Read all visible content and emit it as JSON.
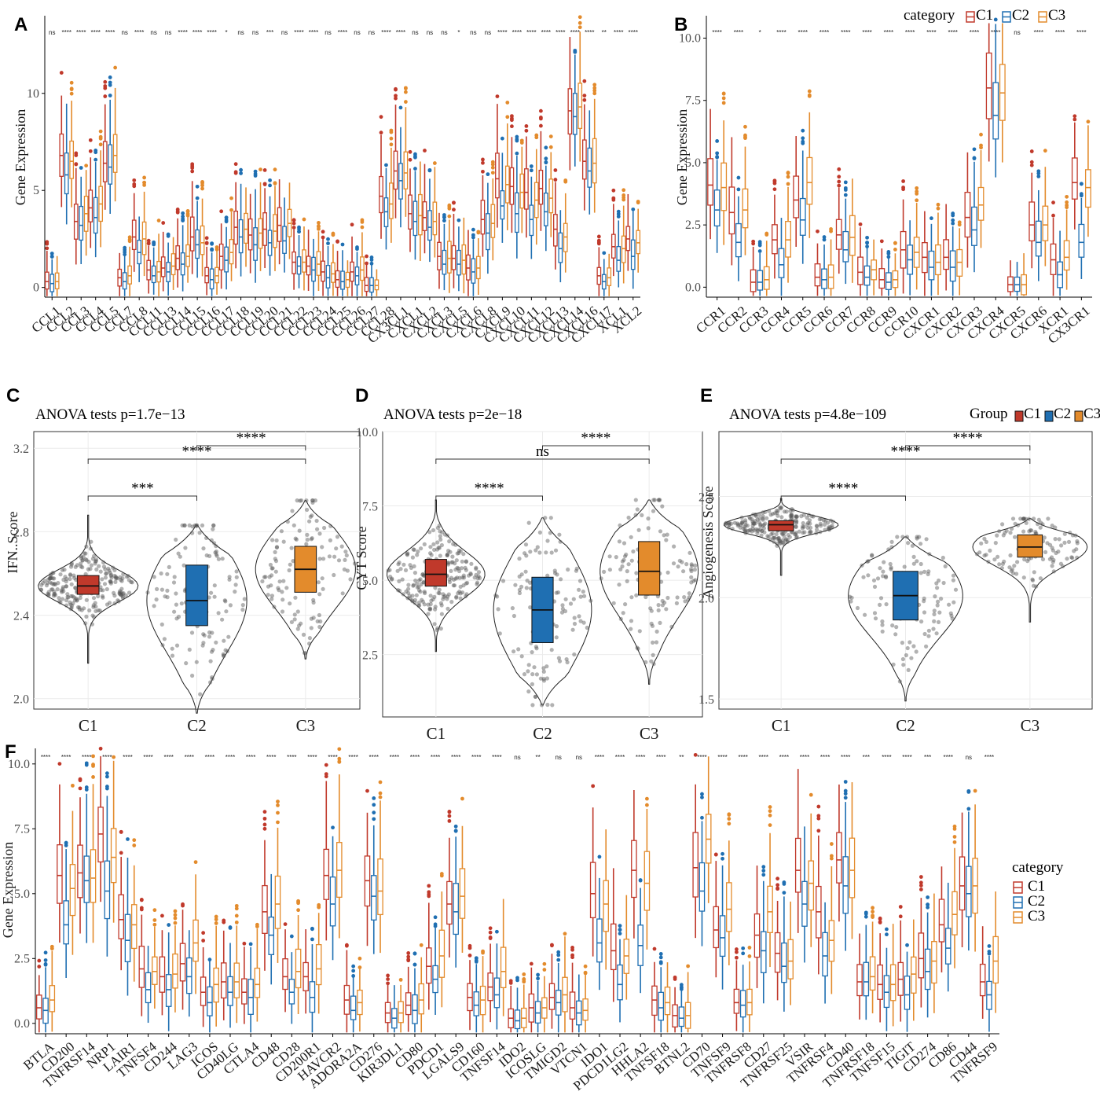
{
  "figure": {
    "panel_labels": [
      "A",
      "B",
      "C",
      "D",
      "E",
      "F"
    ],
    "colors": {
      "C1": "#c0392b",
      "C2": "#1f6fb2",
      "C3": "#e38b2c",
      "grid": "#ebebeb",
      "frame": "#333333"
    }
  },
  "chart_data": [
    {
      "panel": "A",
      "type": "box",
      "ylabel": "Gene Expression",
      "ylim": [
        -0.5,
        14
      ],
      "yticks": [
        0,
        5,
        10
      ],
      "legend": null,
      "series_names": [
        "C1",
        "C2",
        "C3"
      ],
      "categories": [
        "CCL1",
        "CCL2",
        "CCL3",
        "CCL4",
        "CCL5",
        "CCL7",
        "CCL8",
        "CCL11",
        "CCL13",
        "CCL14",
        "CCL15",
        "CCL16",
        "CCL17",
        "CCL18",
        "CCL19",
        "CCL20",
        "CCL21",
        "CCL22",
        "CCL23",
        "CCL24",
        "CCL25",
        "CCL26",
        "CCL27",
        "CCL28",
        "CX3CL1",
        "CXCL1",
        "CXCL2",
        "CXCL3",
        "CXCL5",
        "CXCL6",
        "CXCL8",
        "CXCL9",
        "CXCL10",
        "CXCL11",
        "CXCL12",
        "CXCL13",
        "CXCL14",
        "CXCL16",
        "CXCL17",
        "XCL1",
        "XCL2"
      ],
      "significance": [
        "ns",
        "****",
        "****",
        "****",
        "****",
        "ns",
        "****",
        "ns",
        "ns",
        "****",
        "****",
        "****",
        "*",
        "ns",
        "ns",
        "***",
        "ns",
        "****",
        "****",
        "ns",
        "****",
        "ns",
        "ns",
        "****",
        "****",
        "ns",
        "ns",
        "ns",
        "*",
        "ns",
        "ns",
        "****",
        "****",
        "****",
        "****",
        "****",
        "****",
        "****",
        "**",
        "****",
        "****"
      ],
      "medians": [
        [
          0.3,
          0.2,
          0.3
        ],
        [
          6.8,
          5.8,
          6.5
        ],
        [
          3.4,
          3.2,
          3.8
        ],
        [
          4.1,
          3.6,
          4.3
        ],
        [
          6.4,
          6.2,
          6.8
        ],
        [
          0.5,
          0.3,
          0.6
        ],
        [
          2.6,
          1.8,
          2.5
        ],
        [
          0.9,
          0.6,
          0.8
        ],
        [
          1.0,
          0.8,
          1.1
        ],
        [
          1.5,
          1.2,
          1.6
        ],
        [
          2.6,
          2.2,
          2.3
        ],
        [
          0.6,
          0.4,
          0.6
        ],
        [
          1.6,
          1.4,
          1.8
        ],
        [
          3.1,
          2.6,
          3.0
        ],
        [
          2.7,
          2.2,
          2.8
        ],
        [
          3.0,
          2.3,
          2.9
        ],
        [
          3.2,
          2.4,
          3.3
        ],
        [
          1.3,
          1.1,
          1.3
        ],
        [
          1.1,
          0.9,
          1.2
        ],
        [
          0.8,
          0.5,
          0.7
        ],
        [
          0.4,
          0.3,
          0.4
        ],
        [
          0.8,
          0.6,
          0.9
        ],
        [
          0.1,
          0.1,
          0.1
        ],
        [
          4.7,
          3.9,
          4.3
        ],
        [
          6.0,
          5.5,
          5.9
        ],
        [
          3.8,
          3.4,
          3.7
        ],
        [
          3.6,
          3.1,
          3.4
        ],
        [
          1.6,
          1.2,
          1.5
        ],
        [
          1.5,
          1.2,
          1.4
        ],
        [
          1.0,
          0.8,
          1.0
        ],
        [
          3.5,
          2.8,
          3.3
        ],
        [
          5.6,
          4.2,
          5.3
        ],
        [
          5.2,
          3.8,
          4.9
        ],
        [
          4.9,
          3.5,
          4.5
        ],
        [
          5.1,
          3.9,
          4.6
        ],
        [
          3.0,
          2.0,
          2.6
        ],
        [
          9.1,
          8.8,
          9.3
        ],
        [
          6.5,
          6.0,
          6.4
        ],
        [
          0.6,
          0.3,
          0.5
        ],
        [
          2.1,
          1.4,
          2.0
        ],
        [
          2.5,
          1.6,
          2.3
        ]
      ]
    },
    {
      "panel": "B",
      "type": "box",
      "ylabel": "Gene Expression",
      "ylim": [
        -0.4,
        10.9
      ],
      "yticks": [
        0.0,
        2.5,
        5.0,
        7.5,
        10.0
      ],
      "legend": {
        "title": "category",
        "entries": [
          "C1",
          "C2",
          "C3"
        ],
        "position": "top-right"
      },
      "series_names": [
        "C1",
        "C2",
        "C3"
      ],
      "categories": [
        "CCR1",
        "CCR2",
        "CCR3",
        "CCR4",
        "CCR5",
        "CCR6",
        "CCR7",
        "CCR8",
        "CCR9",
        "CCR10",
        "CXCR1",
        "CXCR2",
        "CXCR3",
        "CXCR4",
        "CXCR5",
        "CXCR6",
        "XCR1",
        "CX3CR1"
      ],
      "significance": [
        "****",
        "****",
        "*",
        "****",
        "****",
        "****",
        "****",
        "****",
        "****",
        "****",
        "****",
        "****",
        "****",
        "****",
        "ns",
        "****",
        "****",
        "****"
      ],
      "medians": [
        [
          4.1,
          3.1,
          4.0
        ],
        [
          3.0,
          1.8,
          3.1
        ],
        [
          0.2,
          0.2,
          0.3
        ],
        [
          1.9,
          0.9,
          1.9
        ],
        [
          3.5,
          2.7,
          4.2
        ],
        [
          0.4,
          0.3,
          0.4
        ],
        [
          2.1,
          1.5,
          2.0
        ],
        [
          0.6,
          0.4,
          0.7
        ],
        [
          0.3,
          0.2,
          0.3
        ],
        [
          1.5,
          1.1,
          1.4
        ],
        [
          1.2,
          0.8,
          1.0
        ],
        [
          1.2,
          0.8,
          1.0
        ],
        [
          2.8,
          2.3,
          3.3
        ],
        [
          8.0,
          6.9,
          7.8
        ],
        [
          0.1,
          0.1,
          0.1
        ],
        [
          2.5,
          1.8,
          2.5
        ],
        [
          1.1,
          0.5,
          1.2
        ],
        [
          4.2,
          1.8,
          4.0
        ]
      ]
    },
    {
      "panel": "C",
      "type": "violin-box",
      "title": "ANOVA tests p=1.7e−13",
      "ylabel": "IFN..Score",
      "ylim": [
        1.95,
        3.28
      ],
      "yticks": [
        2.0,
        2.4,
        2.8,
        3.2
      ],
      "categories": [
        "C1",
        "C2",
        "C3"
      ],
      "boxes": [
        {
          "q1": 2.5,
          "median": 2.54,
          "q3": 2.59,
          "min": 2.17,
          "max": 2.88
        },
        {
          "q1": 2.35,
          "median": 2.47,
          "q3": 2.64,
          "min": 1.93,
          "max": 2.83
        },
        {
          "q1": 2.51,
          "median": 2.62,
          "q3": 2.73,
          "min": 2.19,
          "max": 2.95
        }
      ],
      "comparisons": [
        {
          "pair": [
            "C1",
            "C2"
          ],
          "label": "***"
        },
        {
          "pair": [
            "C1",
            "C3"
          ],
          "label": "****"
        },
        {
          "pair": [
            "C2",
            "C3"
          ],
          "label": "****"
        }
      ],
      "legend": null
    },
    {
      "panel": "D",
      "type": "violin-box",
      "title": "ANOVA tests p=2e−18",
      "ylabel": "CYT Score",
      "ylim": [
        0.4,
        10.0
      ],
      "yticks": [
        2.5,
        5.0,
        7.5,
        10.0
      ],
      "categories": [
        "C1",
        "C2",
        "C3"
      ],
      "boxes": [
        {
          "q1": 4.8,
          "median": 5.2,
          "q3": 5.7,
          "min": 2.6,
          "max": 7.7
        },
        {
          "q1": 2.9,
          "median": 4.0,
          "q3": 5.1,
          "min": 0.8,
          "max": 7.1
        },
        {
          "q1": 4.5,
          "median": 5.3,
          "q3": 6.3,
          "min": 1.5,
          "max": 7.7
        }
      ],
      "comparisons": [
        {
          "pair": [
            "C1",
            "C2"
          ],
          "label": "****"
        },
        {
          "pair": [
            "C1",
            "C3"
          ],
          "label": "ns"
        },
        {
          "pair": [
            "C2",
            "C3"
          ],
          "label": "****"
        }
      ],
      "legend": null
    },
    {
      "panel": "E",
      "type": "violin-box",
      "title": "ANOVA tests p=4.8e−109",
      "ylabel": "Angiogenesis Score",
      "ylim": [
        1.45,
        2.82
      ],
      "yticks": [
        1.5,
        2.0,
        2.5
      ],
      "categories": [
        "C1",
        "C2",
        "C3"
      ],
      "boxes": [
        {
          "q1": 2.33,
          "median": 2.36,
          "q3": 2.38,
          "min": 2.11,
          "max": 2.49
        },
        {
          "q1": 1.89,
          "median": 2.01,
          "q3": 2.13,
          "min": 1.49,
          "max": 2.3
        },
        {
          "q1": 2.2,
          "median": 2.25,
          "q3": 2.31,
          "min": 1.88,
          "max": 2.39
        }
      ],
      "comparisons": [
        {
          "pair": [
            "C1",
            "C2"
          ],
          "label": "****"
        },
        {
          "pair": [
            "C1",
            "C3"
          ],
          "label": "****"
        },
        {
          "pair": [
            "C2",
            "C3"
          ],
          "label": "****"
        }
      ],
      "legend": {
        "title": "Group",
        "entries": [
          "C1",
          "C2",
          "C3"
        ],
        "position": "top-right"
      }
    },
    {
      "panel": "F",
      "type": "box",
      "ylabel": "Gene Expression",
      "ylim": [
        -0.4,
        10.6
      ],
      "yticks": [
        0.0,
        2.5,
        5.0,
        7.5,
        10.0
      ],
      "legend": {
        "title": "category",
        "entries": [
          "C1",
          "C2",
          "C3"
        ],
        "position": "right"
      },
      "series_names": [
        "C1",
        "C2",
        "C3"
      ],
      "categories": [
        "BTLA",
        "CD200",
        "TNFRSF14",
        "NRP1",
        "LAIR1",
        "TNFSF4",
        "CD244",
        "LAG3",
        "ICOS",
        "CD40LG",
        "CTLA4",
        "CD48",
        "CD28",
        "CD200R1",
        "HAVCR2",
        "ADORA2A",
        "CD276",
        "KIR3DL1",
        "CD80",
        "PDCD1",
        "LGALS9",
        "CD160",
        "TNFSF14",
        "IDO2",
        "ICOSLG",
        "TMIGD2",
        "VTCN1",
        "IDO1",
        "PDCD1LG2",
        "HHLA2",
        "TNFSF18",
        "BTNL2",
        "CD70",
        "TNFSF9",
        "TNFRSF8",
        "CD27",
        "TNFRSF25",
        "VSIR",
        "TNFRSF4",
        "CD40",
        "TNFRSF18",
        "TNFSF15",
        "TIGIT",
        "CD274",
        "CD86",
        "CD44",
        "TNFRSF9"
      ],
      "significance": [
        "****",
        "****",
        "****",
        "****",
        "****",
        "****",
        "****",
        "****",
        "****",
        "****",
        "****",
        "****",
        "****",
        "****",
        "****",
        "****",
        "****",
        "****",
        "****",
        "****",
        "****",
        "****",
        "****",
        "ns",
        "**",
        "ns",
        "ns",
        "****",
        "****",
        "****",
        "****",
        "**",
        "****",
        "****",
        "****",
        "****",
        "****",
        "****",
        "****",
        "****",
        "***",
        "****",
        "****",
        "***",
        "****",
        "ns",
        "****"
      ],
      "medians": [
        [
          0.6,
          0.5,
          0.9
        ],
        [
          5.7,
          3.8,
          5.2
        ],
        [
          5.8,
          5.5,
          5.6
        ],
        [
          7.3,
          5.1,
          6.4
        ],
        [
          4.0,
          3.2,
          3.8
        ],
        [
          2.1,
          1.3,
          2.0
        ],
        [
          1.8,
          1.3,
          1.9
        ],
        [
          2.3,
          1.8,
          3.1
        ],
        [
          1.2,
          0.8,
          1.5
        ],
        [
          1.6,
          1.2,
          1.6
        ],
        [
          1.2,
          1.0,
          1.5
        ],
        [
          4.3,
          3.4,
          4.6
        ],
        [
          1.8,
          1.2,
          2.0
        ],
        [
          1.8,
          1.0,
          2.1
        ],
        [
          5.7,
          4.6,
          5.9
        ],
        [
          0.9,
          0.5,
          0.8
        ],
        [
          5.5,
          4.9,
          5.1
        ],
        [
          0.4,
          0.2,
          0.4
        ],
        [
          0.7,
          0.5,
          0.9
        ],
        [
          2.2,
          1.7,
          2.6
        ],
        [
          4.6,
          4.3,
          4.9
        ],
        [
          1.0,
          0.7,
          0.9
        ],
        [
          1.4,
          1.1,
          2.0
        ],
        [
          0.2,
          0.1,
          0.2
        ],
        [
          0.6,
          0.4,
          0.6
        ],
        [
          1.0,
          0.8,
          1.1
        ],
        [
          0.6,
          0.4,
          0.5
        ],
        [
          5.0,
          3.1,
          4.6
        ],
        [
          2.8,
          1.5,
          2.6
        ],
        [
          5.9,
          3.0,
          5.4
        ],
        [
          0.9,
          0.6,
          0.8
        ],
        [
          0.3,
          0.2,
          0.3
        ],
        [
          6.0,
          5.1,
          7.1
        ],
        [
          3.6,
          3.3,
          4.4
        ],
        [
          0.8,
          0.7,
          0.8
        ],
        [
          3.4,
          2.8,
          4.3
        ],
        [
          2.7,
          2.2,
          2.4
        ],
        [
          5.9,
          4.6,
          5.4
        ],
        [
          4.3,
          2.6,
          3.2
        ],
        [
          6.3,
          5.3,
          5.9
        ],
        [
          1.6,
          1.6,
          1.8
        ],
        [
          1.5,
          1.2,
          1.5
        ],
        [
          1.7,
          1.1,
          1.9
        ],
        [
          2.5,
          2.0,
          2.4
        ],
        [
          3.8,
          2.9,
          4.2
        ],
        [
          5.3,
          5.0,
          5.3
        ],
        [
          1.6,
          1.1,
          2.4
        ]
      ]
    }
  ]
}
